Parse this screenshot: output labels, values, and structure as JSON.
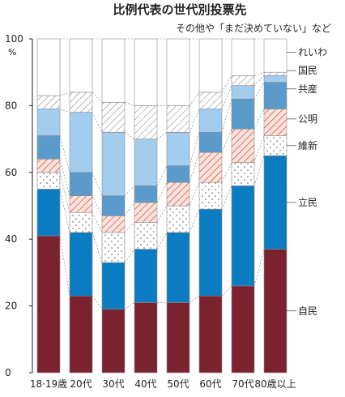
{
  "chart_data": {
    "type": "bar",
    "stacked": true,
    "title": "比例代表の世代別投票先",
    "annotation": "その他や「まだ決めていない」など",
    "y_unit": "%",
    "ylim": [
      0,
      100
    ],
    "yticks": [
      "0",
      "20",
      "40",
      "60",
      "80",
      "100"
    ],
    "grid": false,
    "legend": "right-side labels",
    "categories": [
      "18·19歳",
      "20代",
      "30代",
      "40代",
      "50代",
      "60代",
      "70代",
      "80歳以上"
    ],
    "series": [
      {
        "name": "自民",
        "color": "#7b2230",
        "pattern": "solid",
        "values": [
          41,
          23,
          19,
          21,
          21,
          23,
          26,
          37
        ]
      },
      {
        "name": "立民",
        "color": "#0b7cc1",
        "pattern": "solid",
        "values": [
          14,
          19,
          14,
          16,
          21,
          26,
          30,
          28
        ]
      },
      {
        "name": "維新",
        "color": "#ffffff",
        "pattern": "dots",
        "values": [
          5,
          6,
          9,
          8,
          8,
          8,
          7,
          6
        ]
      },
      {
        "name": "公明",
        "color": "#f7c9bf",
        "pattern": "red-hatch",
        "values": [
          4,
          5,
          5,
          6,
          7,
          9,
          10,
          8
        ]
      },
      {
        "name": "共産",
        "color": "#5b9bcb",
        "pattern": "solid",
        "values": [
          7,
          7,
          6,
          5,
          5,
          6,
          9,
          8
        ]
      },
      {
        "name": "国民",
        "color": "#a3cdee",
        "pattern": "solid",
        "values": [
          8,
          18,
          19,
          14,
          10,
          7,
          4,
          2
        ]
      },
      {
        "name": "れいわ",
        "color": "#ffffff",
        "pattern": "gray-hatch",
        "values": [
          4,
          6,
          9,
          10,
          8,
          5,
          3,
          1
        ]
      },
      {
        "name": "その他や「まだ決めていない」など",
        "color": "#ffffff",
        "pattern": "blank",
        "values": [
          17,
          16,
          19,
          20,
          20,
          16,
          11,
          10
        ]
      }
    ],
    "series_labels": [
      "自民",
      "立民",
      "維新",
      "公明",
      "共産",
      "国民",
      "れいわ"
    ]
  }
}
